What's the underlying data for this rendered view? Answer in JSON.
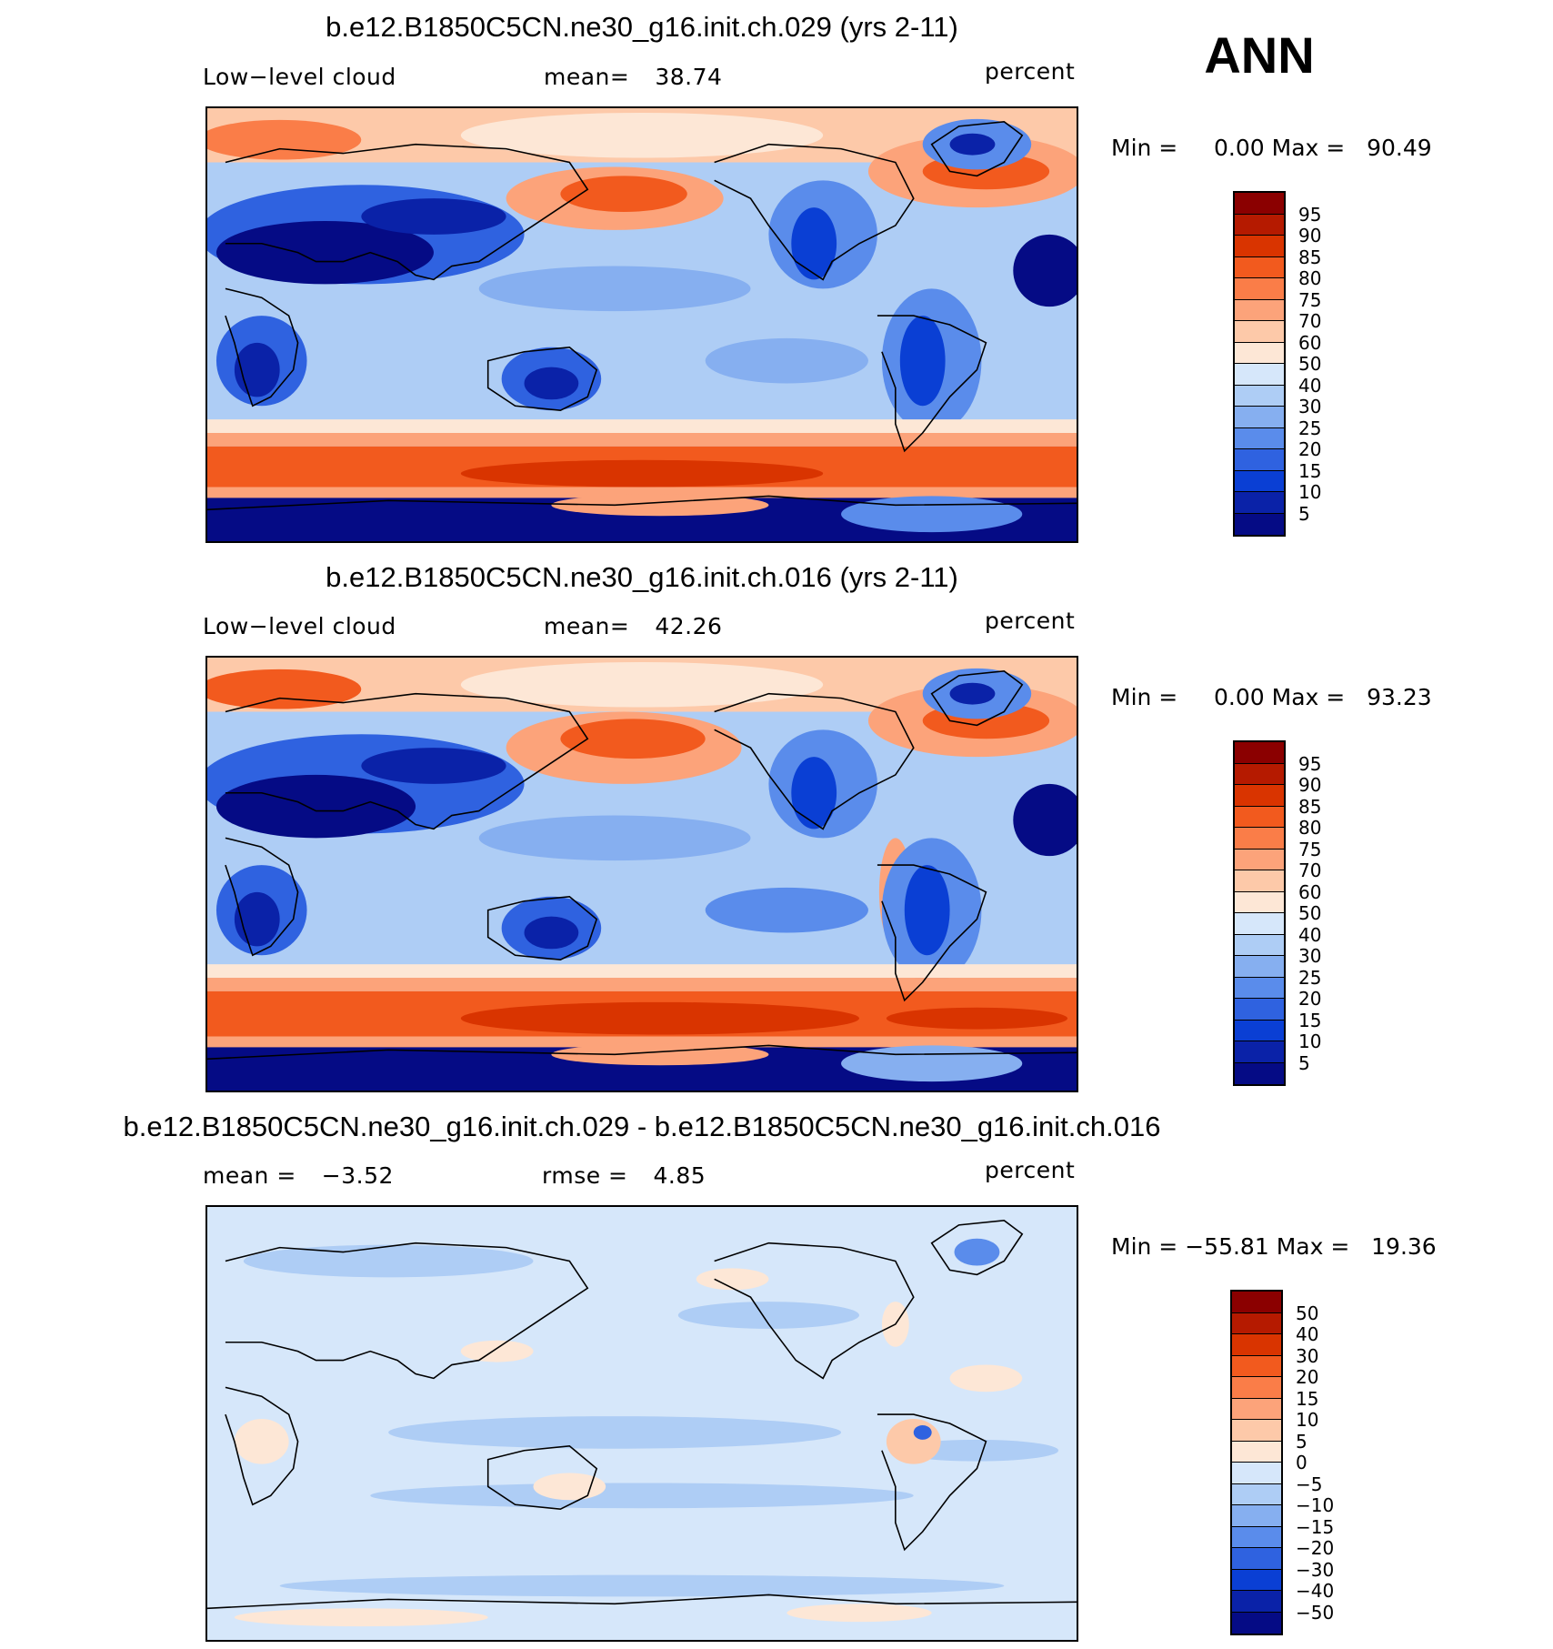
{
  "season": "ANN",
  "panels": [
    {
      "title": "b.e12.B1850C5CN.ne30_g16.init.ch.029 (yrs 2-11)",
      "variable": "Low−level cloud",
      "stat_left_label": "",
      "stat_mid_label": "mean=",
      "stat_mid_value": "38.74",
      "units": "percent",
      "min_label": "Min =",
      "min_value": "0.00",
      "max_label": "Max =",
      "max_value": "90.49",
      "colorbar": {
        "labels": [
          "95",
          "90",
          "85",
          "80",
          "75",
          "70",
          "60",
          "50",
          "40",
          "30",
          "25",
          "20",
          "15",
          "10",
          "5"
        ],
        "colors": [
          "#8b0000",
          "#b51a00",
          "#d93400",
          "#f25a1e",
          "#fa7d48",
          "#fca37a",
          "#fdc9a9",
          "#fde7d6",
          "#d6e7fa",
          "#aecdf5",
          "#86aff0",
          "#5a8ceb",
          "#2f62e0",
          "#0a3fd4",
          "#0a22a8",
          "#050b85"
        ]
      }
    },
    {
      "title": "b.e12.B1850C5CN.ne30_g16.init.ch.016 (yrs 2-11)",
      "variable": "Low−level cloud",
      "stat_mid_label": "mean=",
      "stat_mid_value": "42.26",
      "units": "percent",
      "min_label": "Min =",
      "min_value": "0.00",
      "max_label": "Max =",
      "max_value": "93.23",
      "colorbar": {
        "labels": [
          "95",
          "90",
          "85",
          "80",
          "75",
          "70",
          "60",
          "50",
          "40",
          "30",
          "25",
          "20",
          "15",
          "10",
          "5"
        ],
        "colors": [
          "#8b0000",
          "#b51a00",
          "#d93400",
          "#f25a1e",
          "#fa7d48",
          "#fca37a",
          "#fdc9a9",
          "#fde7d6",
          "#d6e7fa",
          "#aecdf5",
          "#86aff0",
          "#5a8ceb",
          "#2f62e0",
          "#0a3fd4",
          "#0a22a8",
          "#050b85"
        ]
      }
    },
    {
      "title": "b.e12.B1850C5CN.ne30_g16.init.ch.029 - b.e12.B1850C5CN.ne30_g16.init.ch.016",
      "stat_left_label": "mean =",
      "stat_left_value": "−3.52",
      "stat_mid_label": "rmse =",
      "stat_mid_value": "4.85",
      "units": "percent",
      "min_label": "Min =",
      "min_value": "−55.81",
      "max_label": "Max =",
      "max_value": "19.36",
      "colorbar": {
        "labels": [
          "50",
          "40",
          "30",
          "20",
          "15",
          "10",
          "5",
          "0",
          "−5",
          "−10",
          "−15",
          "−20",
          "−30",
          "−40",
          "−50"
        ],
        "colors": [
          "#8b0000",
          "#b51a00",
          "#d93400",
          "#f25a1e",
          "#fa7d48",
          "#fca37a",
          "#fdc9a9",
          "#fde7d6",
          "#d6e7fa",
          "#aecdf5",
          "#86aff0",
          "#5a8ceb",
          "#2f62e0",
          "#0a3fd4",
          "#0a22a8",
          "#050b85"
        ]
      }
    }
  ]
}
